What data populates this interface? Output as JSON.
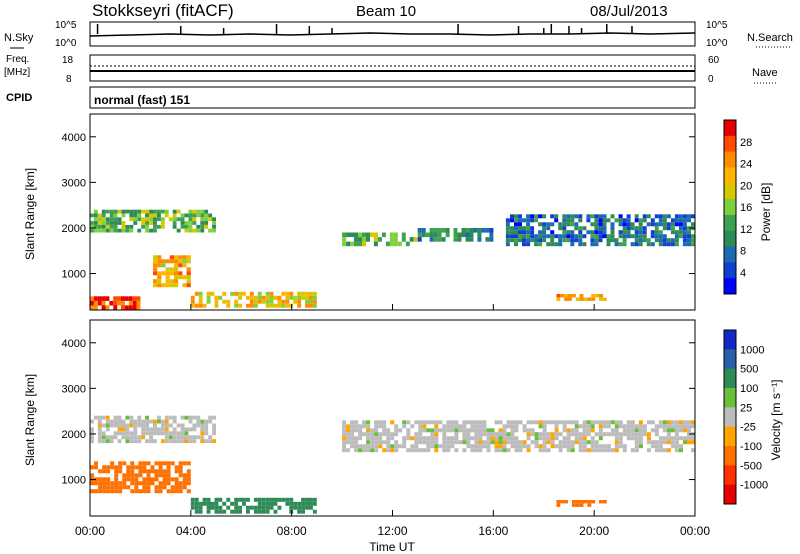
{
  "header": {
    "station": "Stokkseyri (fitACF)",
    "beam": "Beam 10",
    "date": "08/Jul/2013"
  },
  "noise_panel": {
    "left_label": "N.Sky",
    "right_label": "N.Search",
    "left_ticks": [
      "10^5",
      "10^0"
    ],
    "right_ticks": [
      "10^5",
      "10^0"
    ]
  },
  "freq_panel": {
    "left_label_line1": "Freq.",
    "left_label_line2": "[MHz]",
    "right_label": "Nave",
    "left_ticks": [
      "18",
      "8"
    ],
    "right_ticks": [
      "60",
      "0"
    ]
  },
  "cpid_panel": {
    "label": "CPID",
    "text": "normal (fast) 151"
  },
  "power_panel": {
    "ylabel": "Slant Range [km]",
    "yticks": [
      "4000",
      "3000",
      "2000",
      "1000"
    ],
    "colorbar_title": "Power [dB]",
    "colorbar_labels": [
      "28",
      "24",
      "20",
      "16",
      "12",
      "8",
      "4"
    ],
    "colorbar_colors": [
      "#e60000",
      "#ff4a00",
      "#ff8c00",
      "#ffb400",
      "#d4c800",
      "#7fcf3f",
      "#3fa050",
      "#2e8b57",
      "#1a6bb0",
      "#1040d0",
      "#0000ff"
    ]
  },
  "velocity_panel": {
    "ylabel": "Slant Range [km]",
    "yticks": [
      "4000",
      "3000",
      "2000",
      "1000"
    ],
    "colorbar_title": "Velocity [m s⁻¹]",
    "colorbar_labels": [
      "1000",
      "500",
      "100",
      "25",
      "-25",
      "-100",
      "-500",
      "-1000"
    ],
    "colorbar_colors": [
      "#1428c8",
      "#2a60a8",
      "#2e8b57",
      "#6abf3a",
      "#bcbcbc",
      "#ffa500",
      "#ff7000",
      "#ff3000",
      "#e60000"
    ]
  },
  "x_axis": {
    "title": "Time UT",
    "ticks": [
      "00:00",
      "04:00",
      "08:00",
      "12:00",
      "16:00",
      "20:00",
      "00:00"
    ]
  },
  "chart_data": {
    "type": "heatmap",
    "title": "Stokkseyri (fitACF)  Beam 10  08/Jul/2013",
    "xlabel": "Time UT",
    "ylabel": "Slant Range [km]",
    "xlim_hours": [
      0,
      24
    ],
    "ylim_km": [
      200,
      4500
    ],
    "power_bands": [
      {
        "t0": 0.0,
        "t1": 5.0,
        "r0": 1900,
        "r1": 2400,
        "db": 14
      },
      {
        "t0": 10.0,
        "t1": 13.0,
        "r0": 1600,
        "r1": 1900,
        "db": 14
      },
      {
        "t0": 13.0,
        "t1": 16.0,
        "r0": 1700,
        "r1": 2000,
        "db": 10
      },
      {
        "t0": 16.5,
        "t1": 24.0,
        "r0": 1600,
        "r1": 2300,
        "db": 8
      },
      {
        "t0": 2.5,
        "t1": 4.0,
        "r0": 700,
        "r1": 1400,
        "db": 22
      },
      {
        "t0": 0.0,
        "t1": 2.0,
        "r0": 200,
        "r1": 500,
        "db": 28
      },
      {
        "t0": 4.0,
        "t1": 9.0,
        "r0": 250,
        "r1": 600,
        "db": 20
      },
      {
        "t0": 18.5,
        "t1": 20.5,
        "r0": 400,
        "r1": 550,
        "db": 22
      }
    ],
    "velocity_bands": [
      {
        "t0": 0.0,
        "t1": 4.0,
        "r0": 700,
        "r1": 1400,
        "v": -300
      },
      {
        "t0": 0.0,
        "t1": 5.0,
        "r0": 1800,
        "r1": 2400,
        "v": 0
      },
      {
        "t0": 10.0,
        "t1": 24.0,
        "r0": 1600,
        "r1": 2300,
        "v": 0
      },
      {
        "t0": 4.0,
        "t1": 9.0,
        "r0": 250,
        "r1": 600,
        "v": 150
      },
      {
        "t0": 18.5,
        "t1": 20.5,
        "r0": 400,
        "r1": 550,
        "v": -200
      }
    ]
  }
}
